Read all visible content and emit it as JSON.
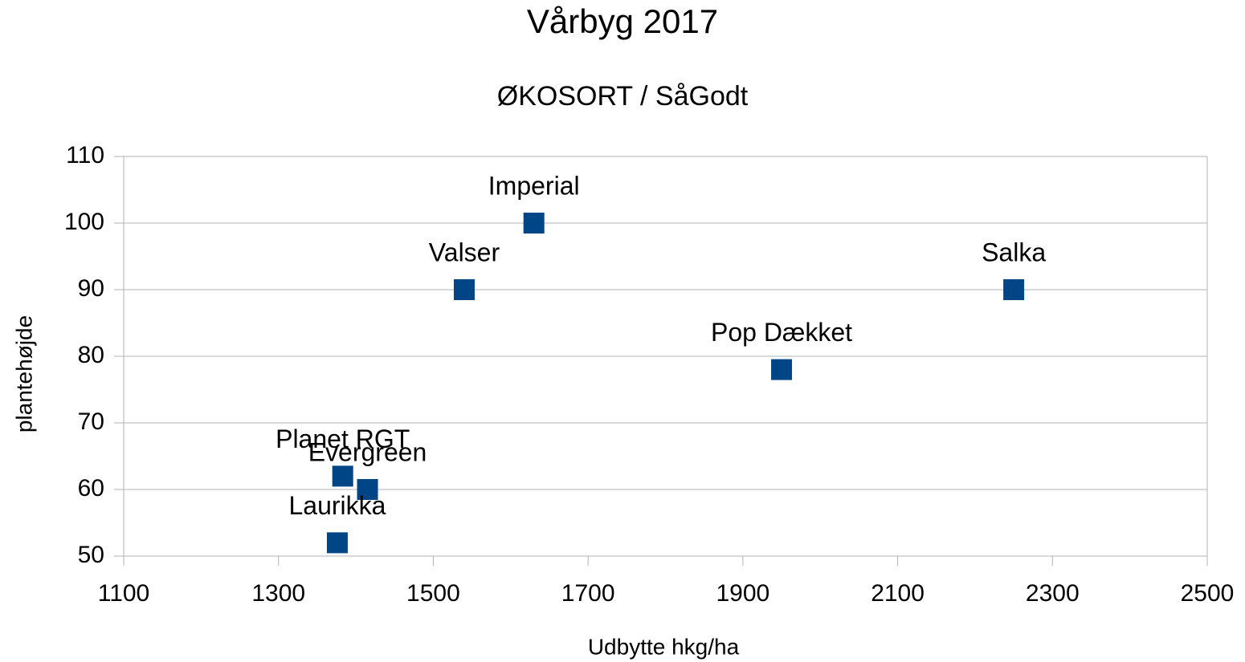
{
  "chart_data": {
    "type": "scatter",
    "title": "Vårbyg 2017",
    "subtitle": "ØKOSORT / SåGodt",
    "x_label": "Udbytte hkg/ha",
    "y_label": "plantehøjde",
    "labels": [
      "Imperial",
      "Valser",
      "Salka",
      "Pop Dækket",
      "Planet RGT",
      "Evergreen",
      "Laurikka"
    ],
    "x": [
      1630,
      1540,
      2250,
      1950,
      1383,
      1415,
      1376
    ],
    "values": [
      100,
      90,
      90,
      78,
      62,
      60,
      52
    ],
    "color": "#004586",
    "xlim": [
      1100,
      2500
    ],
    "xticks": [
      1100,
      1300,
      1500,
      1700,
      1900,
      2100,
      2300,
      2500
    ],
    "ylim": [
      50,
      110
    ],
    "yticks": [
      50,
      60,
      70,
      80,
      90,
      100,
      110
    ],
    "grid": true
  }
}
